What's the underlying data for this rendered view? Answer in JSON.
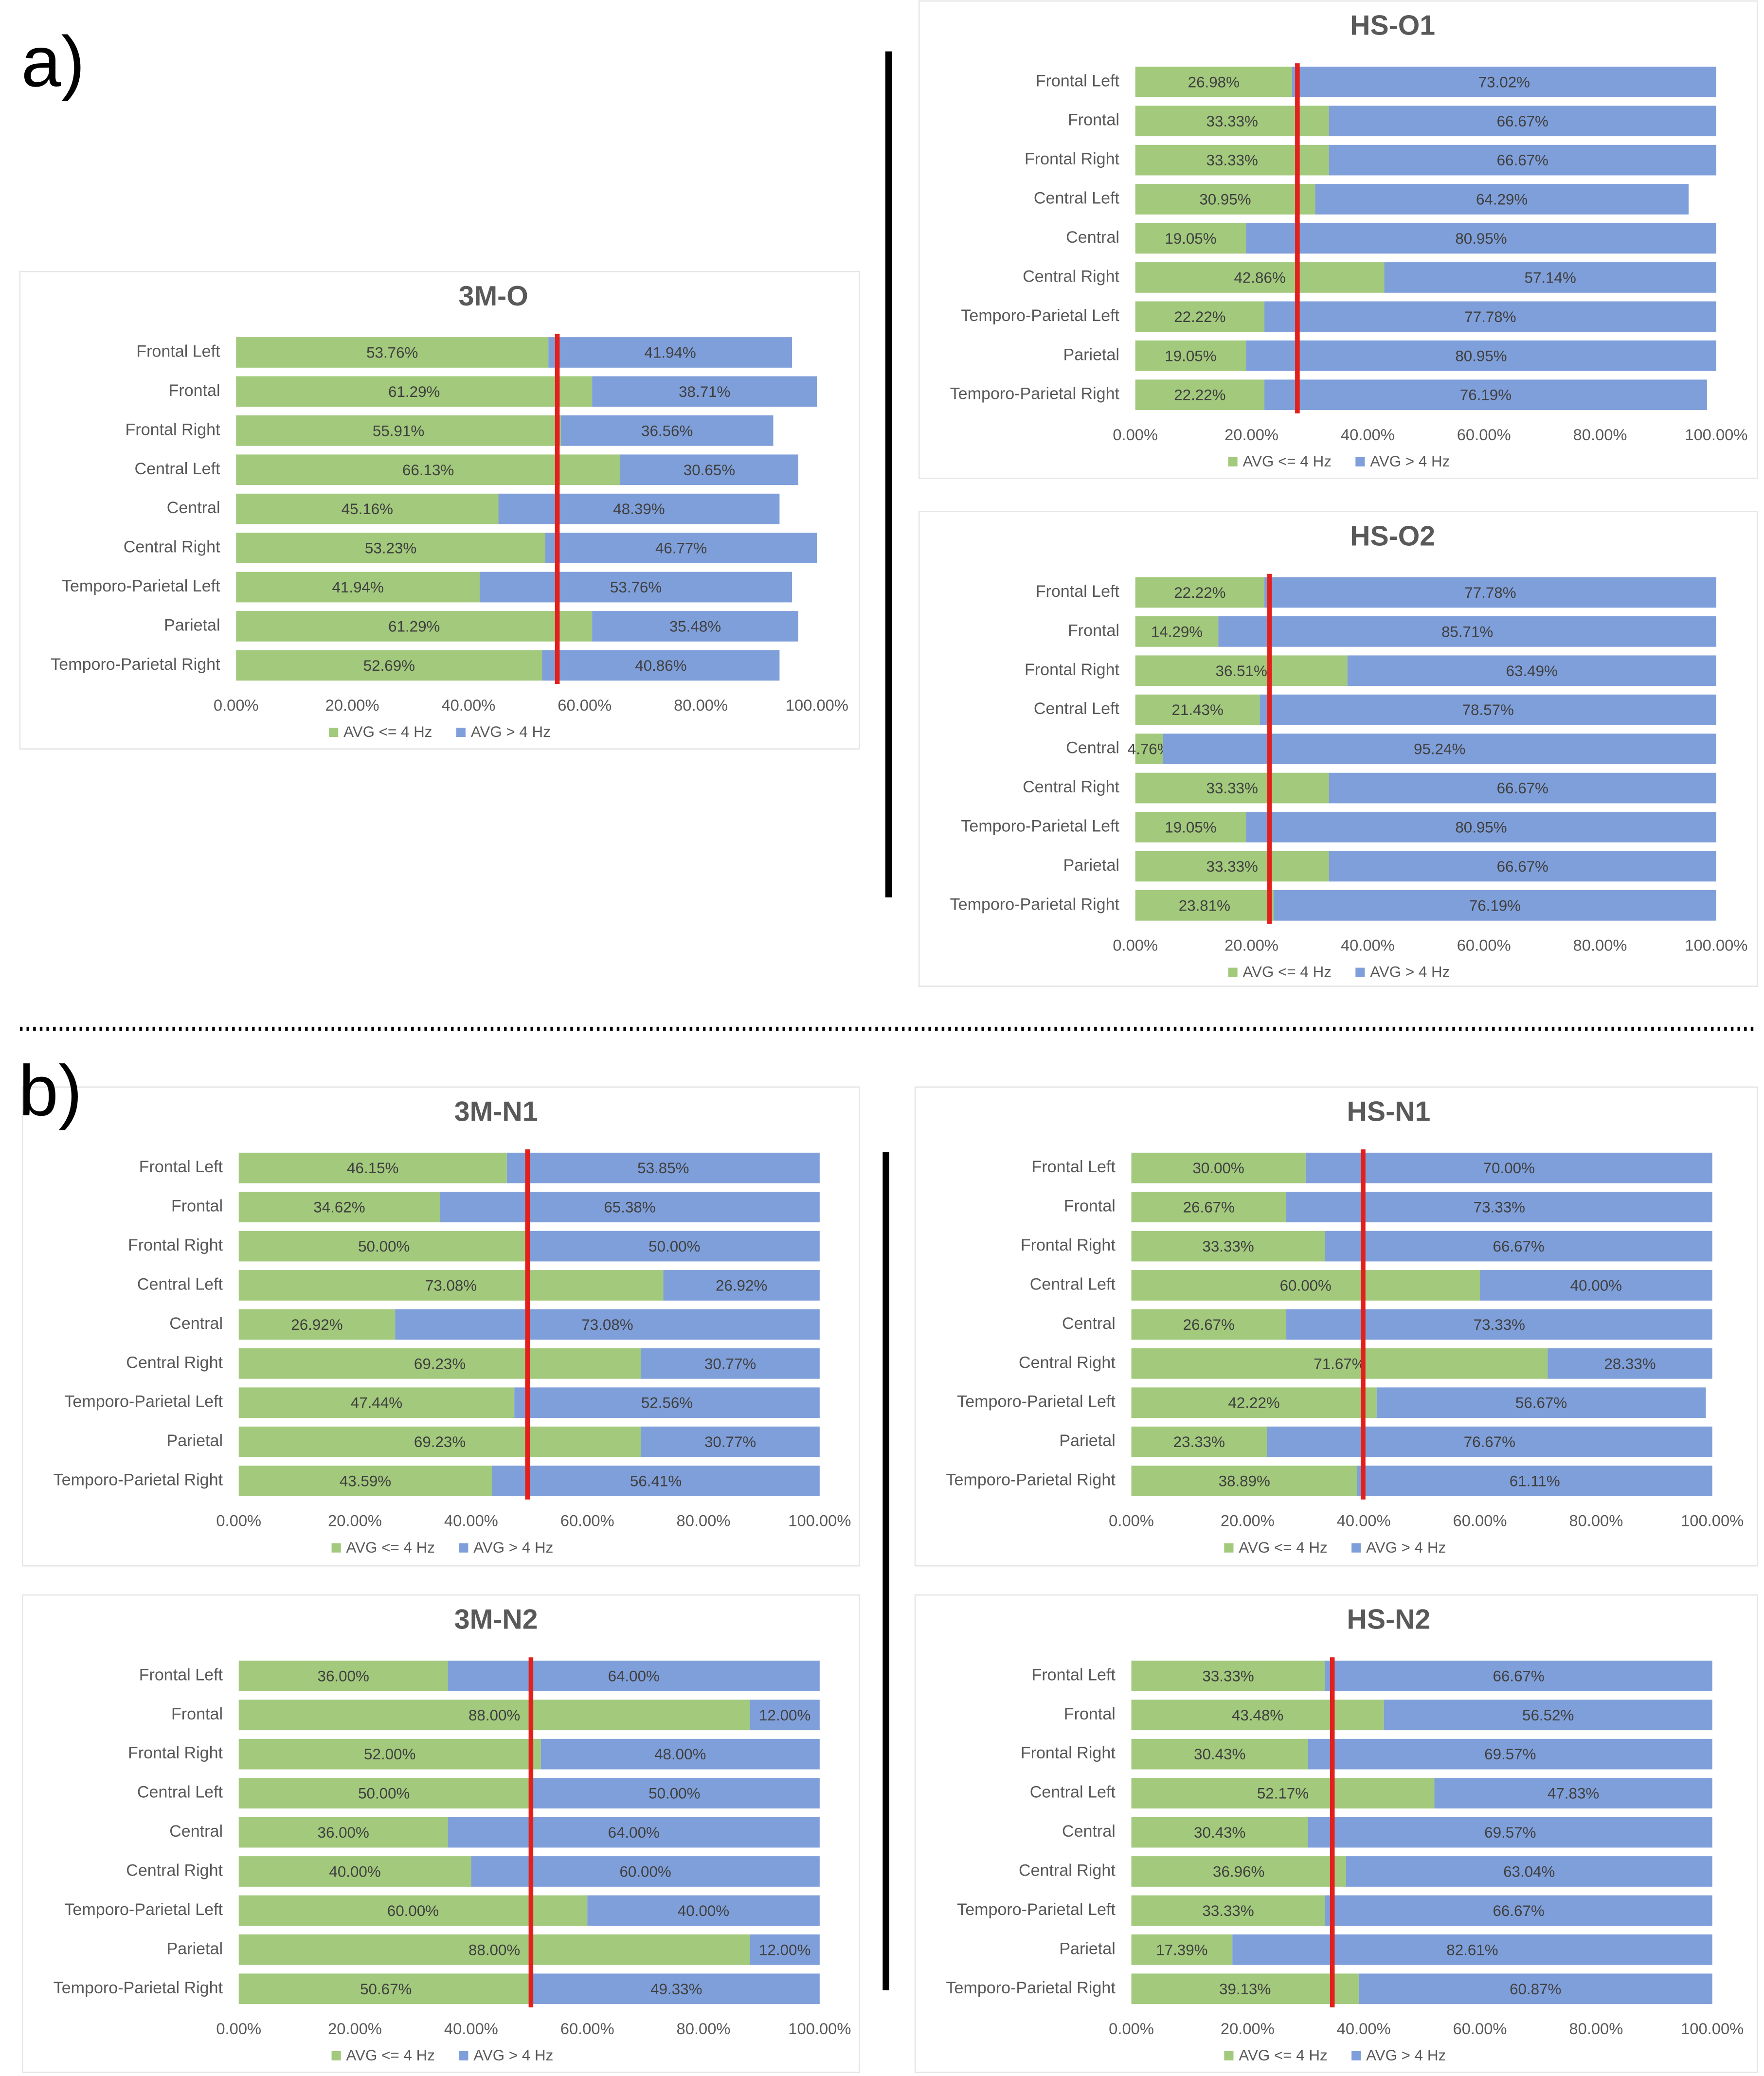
{
  "panel_labels": [
    "a)",
    "b)"
  ],
  "chart_data": [
    {
      "type": "barh",
      "stacked": true,
      "title": "3M-O",
      "categories": [
        "Frontal Left",
        "Frontal",
        "Frontal Right",
        "Central Left",
        "Central",
        "Central Right",
        "Temporo-Parietal Left",
        "Parietal",
        "Temporo-Parietal Right"
      ],
      "series": [
        {
          "name": "AVG <= 4 Hz",
          "color": "#a2c97c",
          "values": [
            53.76,
            61.29,
            55.91,
            66.13,
            45.16,
            53.23,
            41.94,
            61.29,
            52.69
          ],
          "value_labels": [
            "53.76%",
            "61.29%",
            "55.91%",
            "66.13%",
            "45.16%",
            "53.23%",
            "41.94%",
            "61.29%",
            "52.69%"
          ]
        },
        {
          "name": "AVG > 4 Hz",
          "color": "#7f9fda",
          "values": [
            41.94,
            38.71,
            36.56,
            30.65,
            48.39,
            46.77,
            53.76,
            35.48,
            40.86
          ],
          "value_labels": [
            "41.94%",
            "38.71%",
            "36.56%",
            "30.65%",
            "48.39%",
            "46.77%",
            "53.76%",
            "35.48%",
            "40.86%"
          ]
        }
      ],
      "xlim": [
        0,
        100
      ],
      "xticks": [
        {
          "value": 0,
          "label": "0.00%"
        },
        {
          "value": 20,
          "label": "20.00%"
        },
        {
          "value": 40,
          "label": "40.00%"
        },
        {
          "value": 60,
          "label": "60.00%"
        },
        {
          "value": 80,
          "label": "80.00%"
        },
        {
          "value": 100,
          "label": "100.00%"
        }
      ],
      "reference_line": {
        "value": 55.3,
        "color": "#e3201b"
      },
      "legend": "bottom"
    },
    {
      "type": "barh",
      "stacked": true,
      "title": "HS-O1",
      "categories": [
        "Frontal Left",
        "Frontal",
        "Frontal Right",
        "Central Left",
        "Central",
        "Central Right",
        "Temporo-Parietal Left",
        "Parietal",
        "Temporo-Parietal Right"
      ],
      "series": [
        {
          "name": "AVG <= 4 Hz",
          "color": "#a2c97c",
          "values": [
            26.98,
            33.33,
            33.33,
            30.95,
            19.05,
            42.86,
            22.22,
            19.05,
            22.22
          ],
          "value_labels": [
            "26.98%",
            "33.33%",
            "33.33%",
            "30.95%",
            "19.05%",
            "42.86%",
            "22.22%",
            "19.05%",
            "22.22%"
          ]
        },
        {
          "name": "AVG > 4 Hz",
          "color": "#7f9fda",
          "values": [
            73.02,
            66.67,
            66.67,
            64.29,
            80.95,
            57.14,
            77.78,
            80.95,
            76.19
          ],
          "value_labels": [
            "73.02%",
            "66.67%",
            "66.67%",
            "64.29%",
            "80.95%",
            "57.14%",
            "77.78%",
            "80.95%",
            "76.19%"
          ]
        }
      ],
      "xlim": [
        0,
        100
      ],
      "xticks": [
        {
          "value": 0,
          "label": "0.00%"
        },
        {
          "value": 20,
          "label": "20.00%"
        },
        {
          "value": 40,
          "label": "40.00%"
        },
        {
          "value": 60,
          "label": "60.00%"
        },
        {
          "value": 80,
          "label": "80.00%"
        },
        {
          "value": 100,
          "label": "100.00%"
        }
      ],
      "reference_line": {
        "value": 27.9,
        "color": "#e3201b"
      },
      "legend": "bottom"
    },
    {
      "type": "barh",
      "stacked": true,
      "title": "HS-O2",
      "categories": [
        "Frontal Left",
        "Frontal",
        "Frontal Right",
        "Central Left",
        "Central",
        "Central Right",
        "Temporo-Parietal Left",
        "Parietal",
        "Temporo-Parietal Right"
      ],
      "series": [
        {
          "name": "AVG <= 4 Hz",
          "color": "#a2c97c",
          "values": [
            22.22,
            14.29,
            36.51,
            21.43,
            4.76,
            33.33,
            19.05,
            33.33,
            23.81
          ],
          "value_labels": [
            "22.22%",
            "14.29%",
            "36.51%",
            "21.43%",
            "4.76%",
            "33.33%",
            "19.05%",
            "33.33%",
            "23.81%"
          ]
        },
        {
          "name": "AVG > 4 Hz",
          "color": "#7f9fda",
          "values": [
            77.78,
            85.71,
            63.49,
            78.57,
            95.24,
            66.67,
            80.95,
            66.67,
            76.19
          ],
          "value_labels": [
            "77.78%",
            "85.71%",
            "63.49%",
            "78.57%",
            "95.24%",
            "66.67%",
            "80.95%",
            "66.67%",
            "76.19%"
          ]
        }
      ],
      "xlim": [
        0,
        100
      ],
      "xticks": [
        {
          "value": 0,
          "label": "0.00%"
        },
        {
          "value": 20,
          "label": "20.00%"
        },
        {
          "value": 40,
          "label": "40.00%"
        },
        {
          "value": 60,
          "label": "60.00%"
        },
        {
          "value": 80,
          "label": "80.00%"
        },
        {
          "value": 100,
          "label": "100.00%"
        }
      ],
      "reference_line": {
        "value": 23.1,
        "color": "#e3201b"
      },
      "legend": "bottom"
    },
    {
      "type": "barh",
      "stacked": true,
      "title": "3M-N1",
      "categories": [
        "Frontal Left",
        "Frontal",
        "Frontal Right",
        "Central Left",
        "Central",
        "Central Right",
        "Temporo-Parietal Left",
        "Parietal",
        "Temporo-Parietal Right"
      ],
      "series": [
        {
          "name": "AVG <= 4 Hz",
          "color": "#a2c97c",
          "values": [
            46.15,
            34.62,
            50.0,
            73.08,
            26.92,
            69.23,
            47.44,
            69.23,
            43.59
          ],
          "value_labels": [
            "46.15%",
            "34.62%",
            "50.00%",
            "73.08%",
            "26.92%",
            "69.23%",
            "47.44%",
            "69.23%",
            "43.59%"
          ]
        },
        {
          "name": "AVG > 4 Hz",
          "color": "#7f9fda",
          "values": [
            53.85,
            65.38,
            50.0,
            26.92,
            73.08,
            30.77,
            52.56,
            30.77,
            56.41
          ],
          "value_labels": [
            "53.85%",
            "65.38%",
            "50.00%",
            "26.92%",
            "73.08%",
            "30.77%",
            "52.56%",
            "30.77%",
            "56.41%"
          ]
        }
      ],
      "xlim": [
        0,
        100
      ],
      "xticks": [
        {
          "value": 0,
          "label": "0.00%"
        },
        {
          "value": 20,
          "label": "20.00%"
        },
        {
          "value": 40,
          "label": "40.00%"
        },
        {
          "value": 60,
          "label": "60.00%"
        },
        {
          "value": 80,
          "label": "80.00%"
        },
        {
          "value": 100,
          "label": "100.00%"
        }
      ],
      "reference_line": {
        "value": 49.7,
        "color": "#e3201b"
      },
      "legend": "bottom"
    },
    {
      "type": "barh",
      "stacked": true,
      "title": "HS-N1",
      "categories": [
        "Frontal Left",
        "Frontal",
        "Frontal Right",
        "Central Left",
        "Central",
        "Central Right",
        "Temporo-Parietal Left",
        "Parietal",
        "Temporo-Parietal Right"
      ],
      "series": [
        {
          "name": "AVG <= 4 Hz",
          "color": "#a2c97c",
          "values": [
            30.0,
            26.67,
            33.33,
            60.0,
            26.67,
            71.67,
            42.22,
            23.33,
            38.89
          ],
          "value_labels": [
            "30.00%",
            "26.67%",
            "33.33%",
            "60.00%",
            "26.67%",
            "71.67%",
            "42.22%",
            "23.33%",
            "38.89%"
          ]
        },
        {
          "name": "AVG > 4 Hz",
          "color": "#7f9fda",
          "values": [
            70.0,
            73.33,
            66.67,
            40.0,
            73.33,
            28.33,
            56.67,
            76.67,
            61.11
          ],
          "value_labels": [
            "70.00%",
            "73.33%",
            "66.67%",
            "40.00%",
            "73.33%",
            "28.33%",
            "56.67%",
            "76.67%",
            "61.11%"
          ]
        }
      ],
      "xlim": [
        0,
        100
      ],
      "xticks": [
        {
          "value": 0,
          "label": "0.00%"
        },
        {
          "value": 20,
          "label": "20.00%"
        },
        {
          "value": 40,
          "label": "40.00%"
        },
        {
          "value": 60,
          "label": "60.00%"
        },
        {
          "value": 80,
          "label": "80.00%"
        },
        {
          "value": 100,
          "label": "100.00%"
        }
      ],
      "reference_line": {
        "value": 39.9,
        "color": "#e3201b"
      },
      "legend": "bottom"
    },
    {
      "type": "barh",
      "stacked": true,
      "title": "3M-N2",
      "categories": [
        "Frontal Left",
        "Frontal",
        "Frontal Right",
        "Central Left",
        "Central",
        "Central Right",
        "Temporo-Parietal Left",
        "Parietal",
        "Temporo-Parietal Right"
      ],
      "series": [
        {
          "name": "AVG <= 4 Hz",
          "color": "#a2c97c",
          "values": [
            36.0,
            88.0,
            52.0,
            50.0,
            36.0,
            40.0,
            60.0,
            88.0,
            50.67
          ],
          "value_labels": [
            "36.00%",
            "88.00%",
            "52.00%",
            "50.00%",
            "36.00%",
            "40.00%",
            "60.00%",
            "88.00%",
            "50.67%"
          ]
        },
        {
          "name": "AVG > 4 Hz",
          "color": "#7f9fda",
          "values": [
            64.0,
            12.0,
            48.0,
            50.0,
            64.0,
            60.0,
            40.0,
            12.0,
            49.33
          ],
          "value_labels": [
            "64.00%",
            "12.00%",
            "48.00%",
            "50.00%",
            "64.00%",
            "60.00%",
            "40.00%",
            "12.00%",
            "49.33%"
          ]
        }
      ],
      "xlim": [
        0,
        100
      ],
      "xticks": [
        {
          "value": 0,
          "label": "0.00%"
        },
        {
          "value": 20,
          "label": "20.00%"
        },
        {
          "value": 40,
          "label": "40.00%"
        },
        {
          "value": 60,
          "label": "60.00%"
        },
        {
          "value": 80,
          "label": "80.00%"
        },
        {
          "value": 100,
          "label": "100.00%"
        }
      ],
      "reference_line": {
        "value": 50.3,
        "color": "#e3201b"
      },
      "legend": "bottom"
    },
    {
      "type": "barh",
      "stacked": true,
      "title": "HS-N2",
      "categories": [
        "Frontal Left",
        "Frontal",
        "Frontal Right",
        "Central Left",
        "Central",
        "Central Right",
        "Temporo-Parietal Left",
        "Parietal",
        "Temporo-Parietal Right"
      ],
      "series": [
        {
          "name": "AVG <= 4 Hz",
          "color": "#a2c97c",
          "values": [
            33.33,
            43.48,
            30.43,
            52.17,
            30.43,
            36.96,
            33.33,
            17.39,
            39.13
          ],
          "value_labels": [
            "33.33%",
            "43.48%",
            "30.43%",
            "52.17%",
            "30.43%",
            "36.96%",
            "33.33%",
            "17.39%",
            "39.13%"
          ]
        },
        {
          "name": "AVG > 4 Hz",
          "color": "#7f9fda",
          "values": [
            66.67,
            56.52,
            69.57,
            47.83,
            69.57,
            63.04,
            66.67,
            82.61,
            60.87
          ],
          "value_labels": [
            "66.67%",
            "56.52%",
            "69.57%",
            "47.83%",
            "69.57%",
            "63.04%",
            "66.67%",
            "82.61%",
            "60.87%"
          ]
        }
      ],
      "xlim": [
        0,
        100
      ],
      "xticks": [
        {
          "value": 0,
          "label": "0.00%"
        },
        {
          "value": 20,
          "label": "20.00%"
        },
        {
          "value": 40,
          "label": "40.00%"
        },
        {
          "value": 60,
          "label": "60.00%"
        },
        {
          "value": 80,
          "label": "80.00%"
        },
        {
          "value": 100,
          "label": "100.00%"
        }
      ],
      "reference_line": {
        "value": 34.6,
        "color": "#e3201b"
      },
      "legend": "bottom"
    }
  ]
}
